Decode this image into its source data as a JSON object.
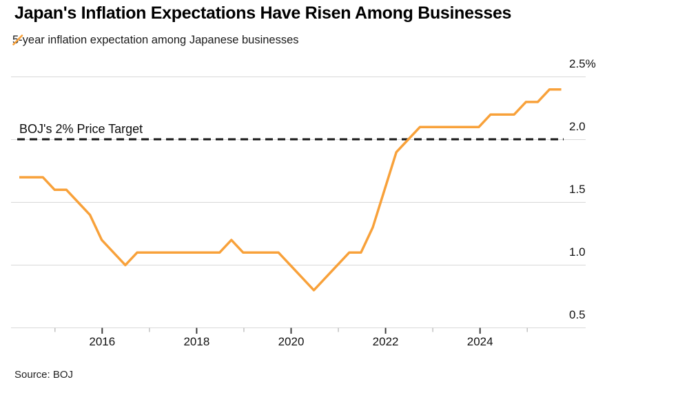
{
  "header": {
    "title": "Japan's Inflation Expectations Have Risen Among Businesses",
    "legend_label": "5-year inflation expectation among Japanese businesses"
  },
  "annotation": {
    "target_label": "BOJ's 2% Price Target"
  },
  "footer": {
    "source": "Source: BOJ"
  },
  "colors": {
    "line": "#F8A13A",
    "reference_line": "#161616",
    "gridline": "#d8d8d8",
    "major_tick": "#3c3c3c",
    "minor_tick": "#c2c2c2"
  },
  "chart_data": {
    "type": "line",
    "title": "Japan's Inflation Expectations Have Risen Among Businesses",
    "legend": [
      "5-year inflation expectation among Japanese businesses"
    ],
    "legend_position": "top-left",
    "grid": "horizontal",
    "source": "Source: BOJ",
    "unit": "%",
    "x": [
      "2014-03",
      "2014-06",
      "2014-09",
      "2014-12",
      "2015-03",
      "2015-06",
      "2015-09",
      "2015-12",
      "2016-03",
      "2016-06",
      "2016-09",
      "2016-12",
      "2017-03",
      "2017-06",
      "2017-09",
      "2017-12",
      "2018-03",
      "2018-06",
      "2018-09",
      "2018-12",
      "2019-03",
      "2019-06",
      "2019-09",
      "2019-12",
      "2020-03",
      "2020-06",
      "2020-09",
      "2020-12",
      "2021-03",
      "2021-06",
      "2021-09",
      "2021-12",
      "2022-03",
      "2022-06",
      "2022-09",
      "2022-12",
      "2023-03",
      "2023-06",
      "2023-09",
      "2023-12",
      "2024-03",
      "2024-06",
      "2024-09",
      "2024-12",
      "2025-03",
      "2025-06",
      "2025-09"
    ],
    "series": [
      {
        "name": "5-year inflation expectation among Japanese businesses",
        "color": "#F8A13A",
        "values": [
          1.7,
          1.7,
          1.7,
          1.6,
          1.6,
          1.5,
          1.4,
          1.2,
          1.1,
          1.0,
          1.1,
          1.1,
          1.1,
          1.1,
          1.1,
          1.1,
          1.1,
          1.1,
          1.2,
          1.1,
          1.1,
          1.1,
          1.1,
          1.0,
          0.9,
          0.8,
          0.9,
          1.0,
          1.1,
          1.1,
          1.3,
          1.6,
          1.9,
          2.0,
          2.1,
          2.1,
          2.1,
          2.1,
          2.1,
          2.1,
          2.2,
          2.2,
          2.2,
          2.3,
          2.3,
          2.4,
          2.4
        ]
      }
    ],
    "y_axis": {
      "side": "right",
      "range": [
        0.5,
        2.5
      ],
      "ticks": [
        2.5,
        2.0,
        1.5,
        1.0,
        0.5
      ],
      "labels": [
        "2.5%",
        "2.0",
        "1.5",
        "1.0",
        "0.5"
      ]
    },
    "x_axis": {
      "major_tick_years": [
        2016,
        2018,
        2020,
        2022,
        2024
      ],
      "minor_tick_years": [
        2015,
        2017,
        2019,
        2021,
        2023,
        2025
      ],
      "labels": [
        "2016",
        "2018",
        "2020",
        "2022",
        "2024"
      ]
    },
    "reference_line": {
      "label": "BOJ's 2% Price Target",
      "value": 2.0,
      "style": "dashed",
      "color": "#161616"
    }
  }
}
